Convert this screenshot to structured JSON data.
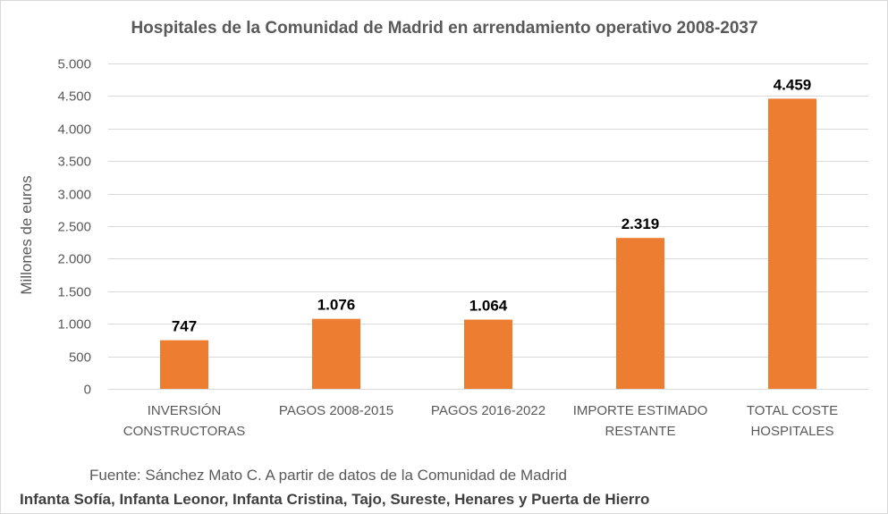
{
  "chart_data": {
    "type": "bar",
    "title": "Hospitales de la Comunidad de Madrid en arrendamiento operativo 2008-2037",
    "xlabel": "",
    "ylabel": "Millones de euros",
    "ylim": [
      0,
      5000
    ],
    "y_ticks": [
      0,
      500,
      1000,
      1500,
      2000,
      2500,
      3000,
      3500,
      4000,
      4500,
      5000
    ],
    "y_tick_labels": [
      "0",
      "500",
      "1.000",
      "1.500",
      "2.000",
      "2.500",
      "3.000",
      "3.500",
      "4.000",
      "4.500",
      "5.000"
    ],
    "grid": true,
    "legend": "none",
    "categories": [
      [
        "INVERSIÓN",
        "CONSTRUCTORAS"
      ],
      [
        "PAGOS 2008-2015"
      ],
      [
        "PAGOS 2016-2022"
      ],
      [
        "IMPORTE ESTIMADO",
        "RESTANTE"
      ],
      [
        "TOTAL COSTE",
        "HOSPITALES"
      ]
    ],
    "values": [
      747,
      1076,
      1064,
      2319,
      4459
    ],
    "data_labels": [
      "747",
      "1.076",
      "1.064",
      "2.319",
      "4.459"
    ],
    "bar_color": "#ED7D31",
    "grid_color": "#d9d9d9"
  },
  "footer": {
    "source": "Fuente: Sánchez Mato C.  A partir de datos de la Comunidad de Madrid",
    "hospitals": "Infanta Sofía, Infanta Leonor, Infanta Cristina, Tajo, Sureste, Henares y Puerta de Hierro"
  }
}
